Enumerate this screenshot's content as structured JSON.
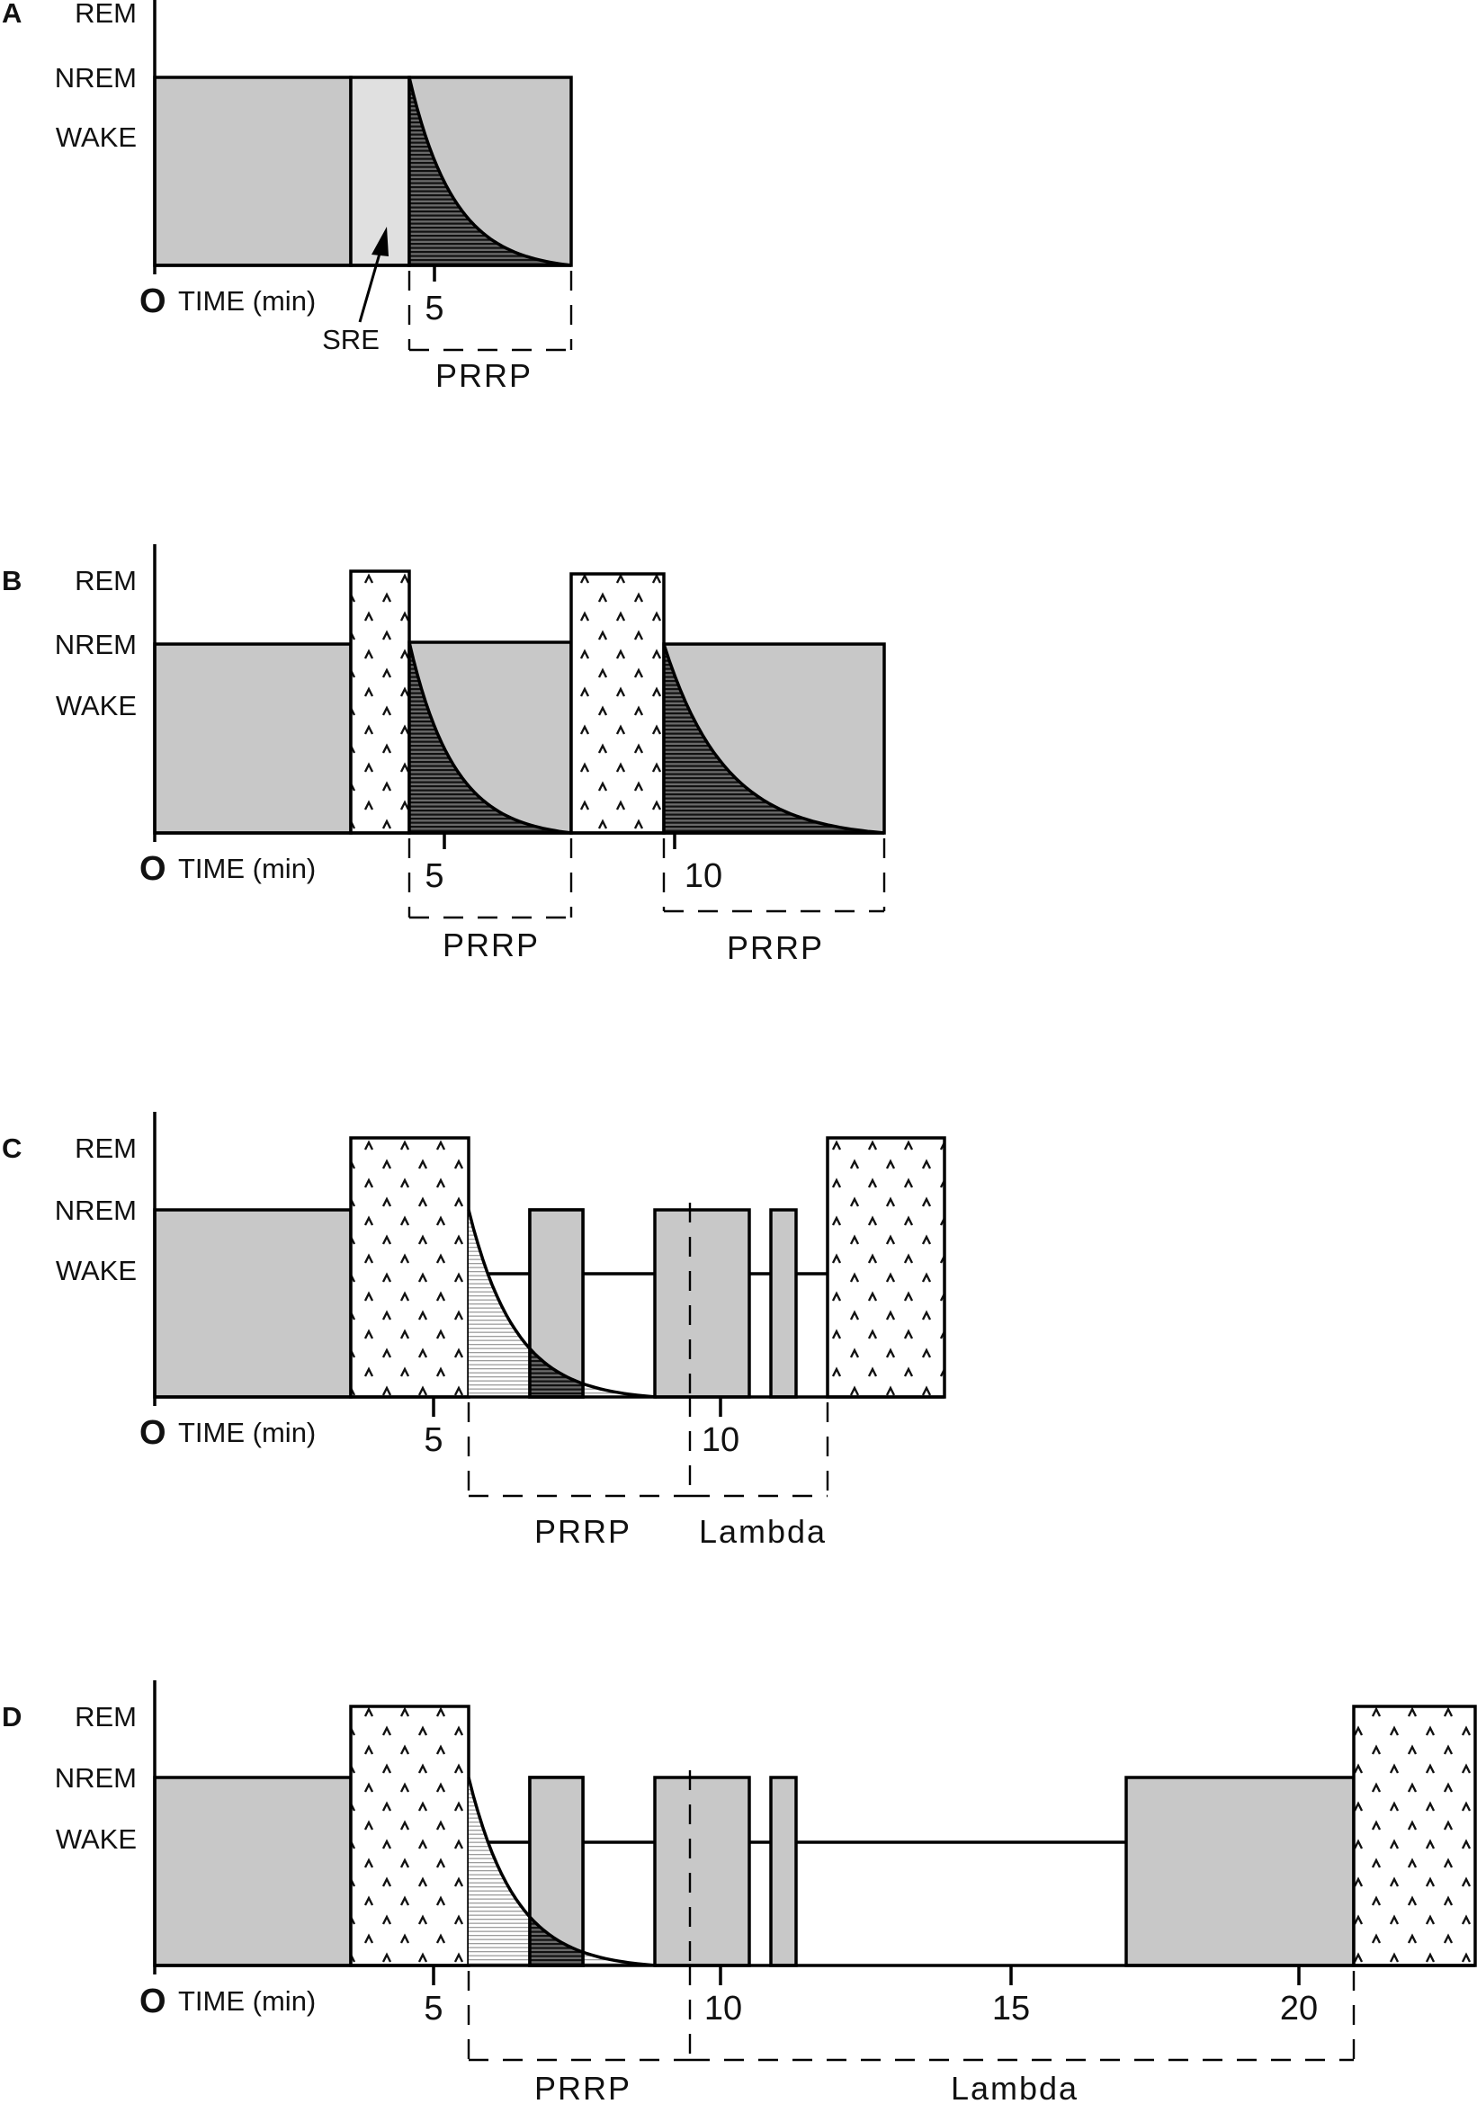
{
  "state_labels": {
    "rem": "REM",
    "nrem": "NREM",
    "wake": "WAKE"
  },
  "axis": {
    "origin": "O",
    "time_label": "TIME (min)"
  },
  "colors": {
    "nrem_fill": "#c8c8c8",
    "sre_fill": "#e0e0e0",
    "line": "#000000"
  },
  "panels": [
    {
      "letter": "A",
      "ticks": [
        {
          "label": "5"
        }
      ],
      "annotation": "SRE",
      "brackets": [
        {
          "label": "PRRP"
        }
      ]
    },
    {
      "letter": "B",
      "ticks": [
        {
          "label": "5"
        },
        {
          "label": "10"
        }
      ],
      "brackets": [
        {
          "label": "PRRP"
        },
        {
          "label": "PRRP"
        }
      ]
    },
    {
      "letter": "C",
      "ticks": [
        {
          "label": "5"
        },
        {
          "label": "10"
        }
      ],
      "brackets": [
        {
          "label": "PRRP"
        },
        {
          "label": "Lambda"
        }
      ]
    },
    {
      "letter": "D",
      "ticks": [
        {
          "label": "5"
        },
        {
          "label": "10"
        },
        {
          "label": "15"
        },
        {
          "label": "20"
        }
      ],
      "brackets": [
        {
          "label": "PRRP"
        },
        {
          "label": "Lambda"
        }
      ]
    }
  ]
}
